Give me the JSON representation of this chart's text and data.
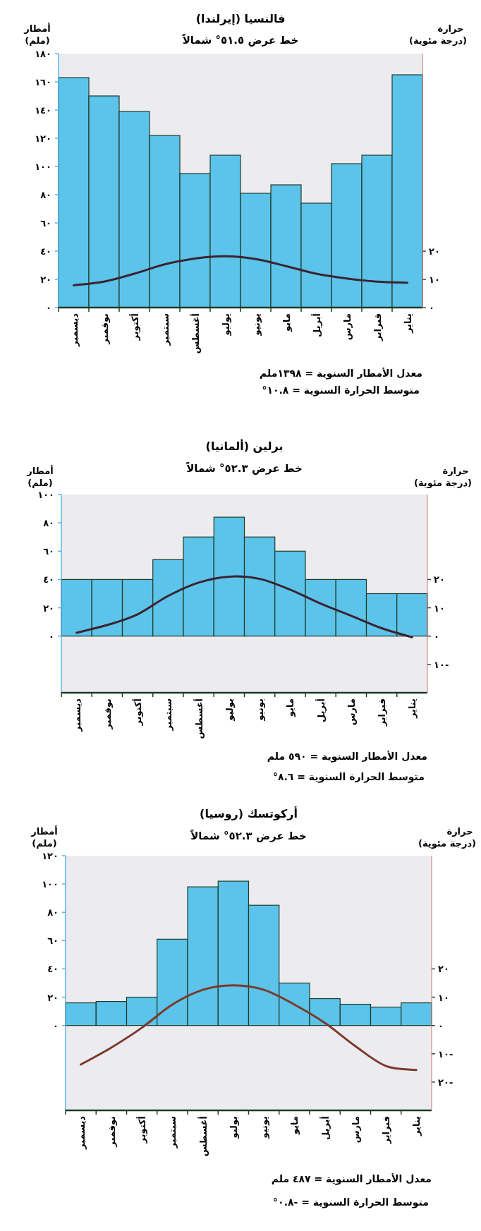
{
  "chart_data": [
    {
      "type": "bar",
      "title": "فالنسيا (إيرلندا)",
      "subtitle": "خط عرض ٥١.٥° شمالاً",
      "ylabel": "أمطار (ملم)",
      "y2label": "حرارة (درجة مئوية)",
      "categories": [
        "ديسمبر",
        "نوفمبر",
        "أكتوبر",
        "سبتمبر",
        "أغسطس",
        "يوليو",
        "يونيو",
        "مايو",
        "أبريل",
        "مارس",
        "فبراير",
        "يناير"
      ],
      "ylim": [
        0,
        180
      ],
      "yticks": [
        {
          "value": 0,
          "label": "٠"
        },
        {
          "value": 20,
          "label": "٢٠"
        },
        {
          "value": 40,
          "label": "٤٠"
        },
        {
          "value": 60,
          "label": "٦٠"
        },
        {
          "value": 80,
          "label": "٨٠"
        },
        {
          "value": 100,
          "label": "١٠٠"
        },
        {
          "value": 120,
          "label": "١٢٠"
        },
        {
          "value": 140,
          "label": "١٤٠"
        },
        {
          "value": 160,
          "label": "١٦٠"
        },
        {
          "value": 180,
          "label": "١٨٠"
        }
      ],
      "y2lim": [
        0,
        90
      ],
      "y2ticks": [
        {
          "value": 0,
          "label": "٠"
        },
        {
          "value": 10,
          "label": "١٠"
        },
        {
          "value": 20,
          "label": "٢٠"
        }
      ],
      "series": [
        {
          "type": "bar",
          "color": "#5cc3ea",
          "values": [
            163,
            150,
            139,
            122,
            95,
            108,
            81,
            87,
            74,
            102,
            108,
            165
          ]
        },
        {
          "type": "line",
          "axis": "y2",
          "color": "#3b2330",
          "values": [
            7.9,
            9.2,
            12,
            15.3,
            17.4,
            18.2,
            17.2,
            14.7,
            12,
            10.3,
            9.2,
            8.8
          ]
        }
      ],
      "annotations": [
        "معدل الأمطار السنوية = ١٣٩٨ملم",
        "متوسط الحرارة السنوية = ١٠.٨°"
      ]
    },
    {
      "type": "bar",
      "title": "برلين (ألمانيا)",
      "subtitle": "خط عرض ٥٢.٣° شمالاً",
      "ylabel": "أمطار (ملم)",
      "y2label": "حرارة (درجة مئوية)",
      "categories": [
        "ديسمبر",
        "نوفمبر",
        "أكتوبر",
        "سبتمبر",
        "أغسطس",
        "يوليو",
        "يونيو",
        "مايو",
        "أبريل",
        "مارس",
        "فبراير",
        "يناير"
      ],
      "ylim": [
        -40,
        100
      ],
      "yticks": [
        {
          "value": 0,
          "label": "٠"
        },
        {
          "value": 20,
          "label": "٢٠"
        },
        {
          "value": 40,
          "label": "٤٠"
        },
        {
          "value": 60,
          "label": "٦٠"
        },
        {
          "value": 80,
          "label": "٨٠"
        },
        {
          "value": 100,
          "label": "١٠٠"
        }
      ],
      "y2lim": [
        -20,
        50
      ],
      "y2ticks": [
        {
          "value": -10,
          "label": "١٠-"
        },
        {
          "value": 0,
          "label": "٠"
        },
        {
          "value": 10,
          "label": "١٠"
        },
        {
          "value": 20,
          "label": "٢٠"
        }
      ],
      "series": [
        {
          "type": "bar",
          "color": "#5cc3ea",
          "values": [
            40,
            40,
            40,
            54,
            70,
            84,
            70,
            60,
            40,
            40,
            30,
            30
          ]
        },
        {
          "type": "line",
          "axis": "y2",
          "color": "#3b2330",
          "values": [
            1.2,
            3.9,
            7.7,
            14.2,
            18.9,
            21,
            20.2,
            16.4,
            11.5,
            7.2,
            2.8,
            -0.4
          ]
        }
      ],
      "annotations": [
        "معدل الأمطار السنوية = ٥٩٠ ملم",
        "متوسط الحرارة السنوية = ٨.٦°"
      ]
    },
    {
      "type": "bar",
      "title": "أركوتسك (روسيا)",
      "subtitle": "خط عرض ٥٢.٣° شمالاً",
      "ylabel": "أمطار (ملم)",
      "y2label": "حرارة (درجة مئوية)",
      "categories": [
        "ديسمبر",
        "نوفمبر",
        "أكتوبر",
        "سبتمبر",
        "أغسطس",
        "يوليو",
        "يونيو",
        "مايو",
        "أبريل",
        "مارس",
        "فبراير",
        "يناير"
      ],
      "ylim": [
        -60,
        120
      ],
      "yticks": [
        {
          "value": 0,
          "label": "٠"
        },
        {
          "value": 20,
          "label": "٢٠"
        },
        {
          "value": 40,
          "label": "٤٠"
        },
        {
          "value": 60,
          "label": "٦٠"
        },
        {
          "value": 80,
          "label": "٨٠"
        },
        {
          "value": 100,
          "label": "١٠٠"
        },
        {
          "value": 120,
          "label": "١٢٠"
        }
      ],
      "y2lim": [
        -30,
        60
      ],
      "y2ticks": [
        {
          "value": -20,
          "label": "٢٠-"
        },
        {
          "value": -10,
          "label": "١٠-"
        },
        {
          "value": 0,
          "label": "٠"
        },
        {
          "value": 10,
          "label": "١٠"
        },
        {
          "value": 20,
          "label": "٢٠"
        }
      ],
      "series": [
        {
          "type": "bar",
          "color": "#5cc3ea",
          "values": [
            16,
            17,
            20,
            61,
            98,
            102,
            85,
            30,
            19,
            15,
            13,
            16
          ]
        },
        {
          "type": "line",
          "axis": "y2",
          "color": "#7a3a2a",
          "values": [
            -13.8,
            -7.8,
            -0.8,
            7.4,
            12.6,
            14.2,
            12.6,
            7.4,
            0.9,
            -7.3,
            -14.3,
            -15.7
          ]
        }
      ],
      "annotations": [
        "معدل الأمطار السنوية = ٤٨٧ ملم",
        "متوسط الحرارة السنوية = -٠.٨°"
      ]
    }
  ]
}
